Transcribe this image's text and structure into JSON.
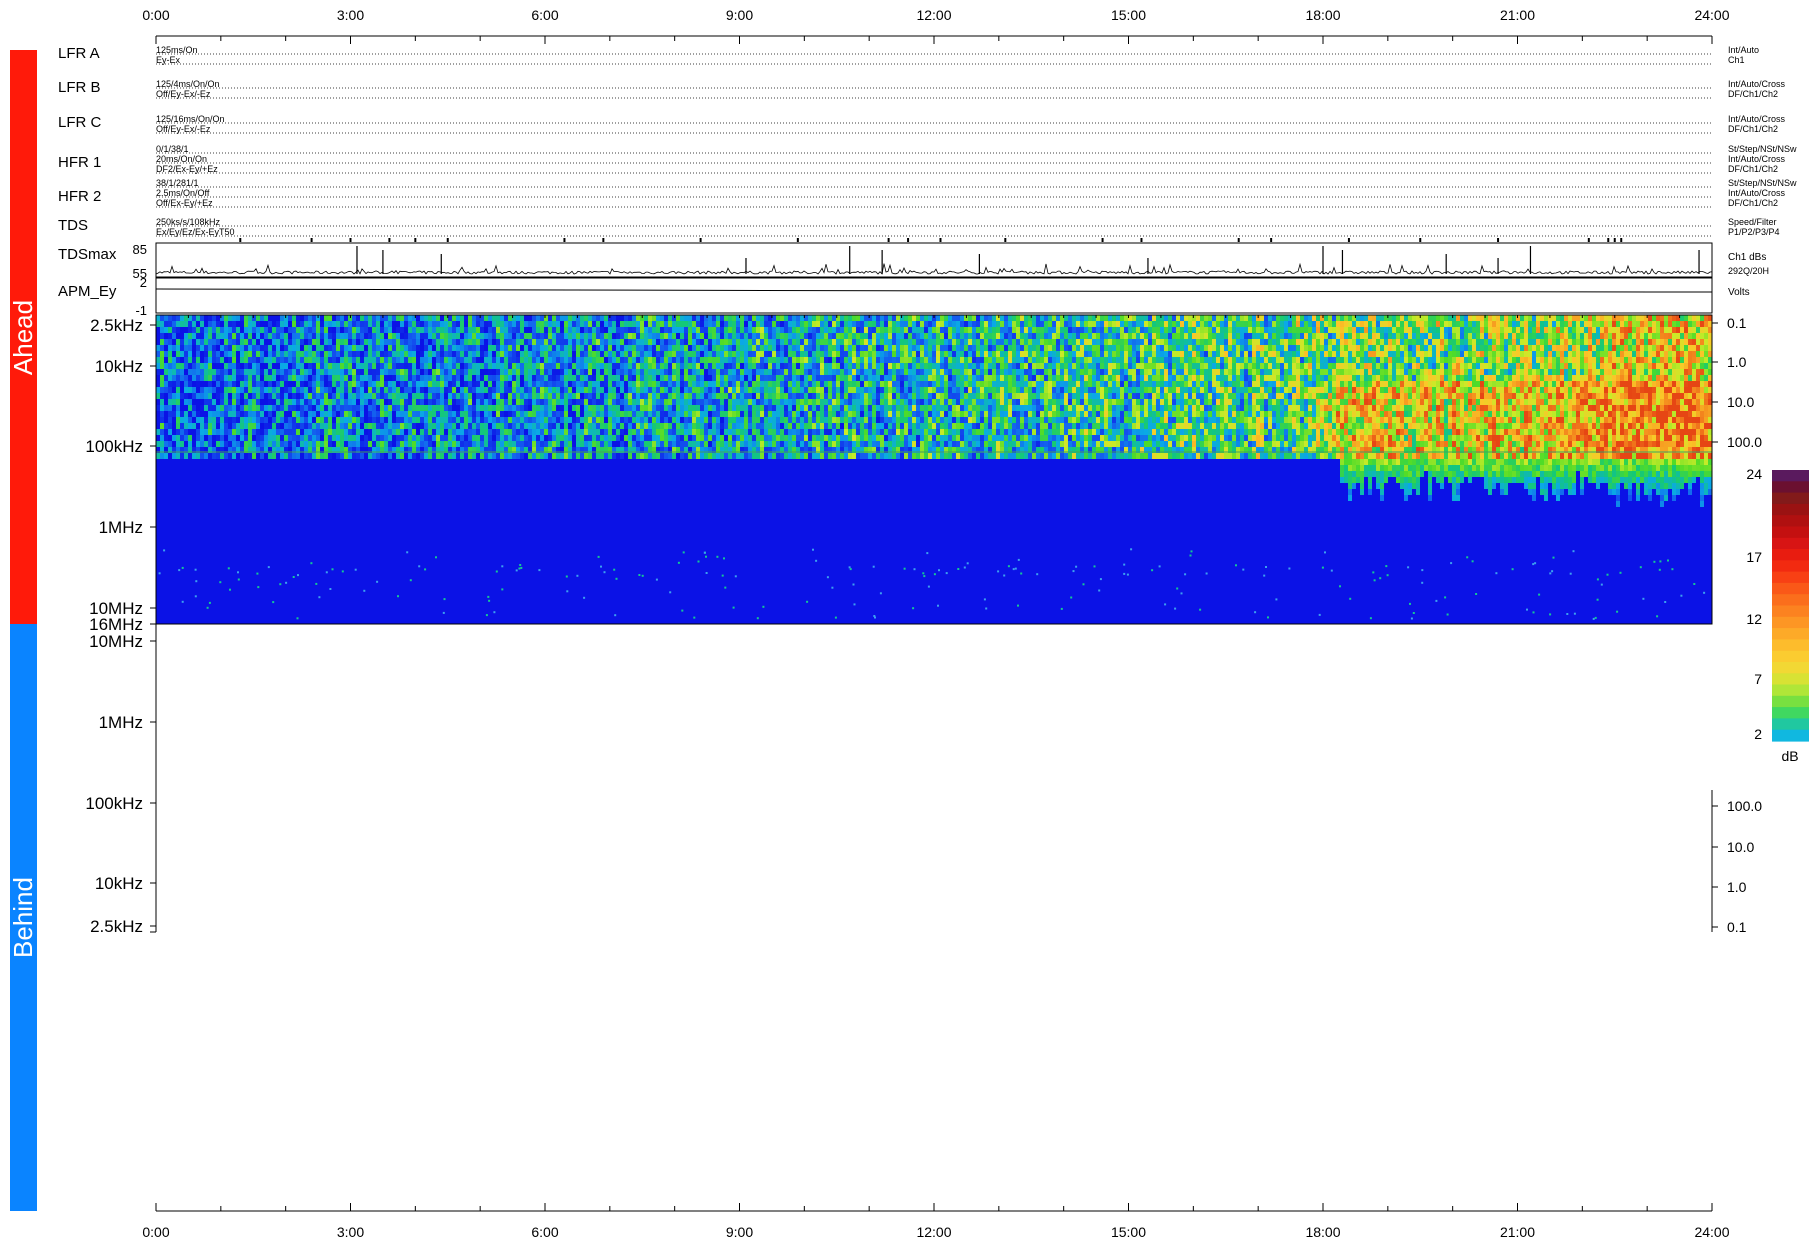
{
  "colors": {
    "ahead": "#ff1a0a",
    "behind": "#0a84ff",
    "spectro_low": "#0b12e6",
    "line": "#000000",
    "axis_text": "#000000"
  },
  "sides": {
    "ahead": "Ahead",
    "behind": "Behind"
  },
  "time_axis": {
    "ticks": [
      "0:00",
      "3:00",
      "6:00",
      "9:00",
      "12:00",
      "15:00",
      "18:00",
      "21:00",
      "24:00"
    ]
  },
  "instrument_rows": [
    {
      "name": "LFR A",
      "left": [
        "125ms/On",
        "Ey-Ex"
      ],
      "right": [
        "Int/Auto",
        "Ch1"
      ]
    },
    {
      "name": "LFR B",
      "left": [
        "125/4ms/On/On",
        "Off/Ey-Ex/-Ez"
      ],
      "right": [
        "Int/Auto/Cross",
        "DF/Ch1/Ch2"
      ]
    },
    {
      "name": "LFR C",
      "left": [
        "125/16ms/On/On",
        "Off/Ey-Ex/-Ez"
      ],
      "right": [
        "Int/Auto/Cross",
        "DF/Ch1/Ch2"
      ]
    },
    {
      "name": "HFR 1",
      "left": [
        "0/1/38/1",
        "20ms/On/On",
        "DF2/Ex-Ey/+Ez"
      ],
      "right": [
        "St/Step/NSt/NSw",
        "Int/Auto/Cross",
        "DF/Ch1/Ch2"
      ]
    },
    {
      "name": "HFR 2",
      "left": [
        "38/1/281/1",
        "2.5ms/On/Off",
        "Off/Ex-Ey/+Ez"
      ],
      "right": [
        "St/Step/NSt/NSw",
        "Int/Auto/Cross",
        "DF/Ch1/Ch2"
      ]
    },
    {
      "name": "TDS",
      "left": [
        "250ks/s/108kHz",
        "Ex/Ey/Ez/Ex-EyT50"
      ],
      "right": [
        "Speed/Filter",
        "P1/P2/P3/P4"
      ]
    }
  ],
  "tdsmax": {
    "name": "TDSmax",
    "yticks": [
      "85",
      "55"
    ],
    "right": [
      "Ch1 dBs",
      "292Q/20H"
    ]
  },
  "apm": {
    "name": "APM_Ey",
    "yticks": [
      "2",
      "-1"
    ],
    "right": [
      "Volts"
    ]
  },
  "freq_axis_ahead": {
    "left": [
      "2.5kHz",
      "10kHz",
      "100kHz",
      "1MHz",
      "10MHz",
      "16MHz"
    ],
    "right": [
      "0.1",
      "1.0",
      "10.0",
      "100.0"
    ]
  },
  "freq_axis_behind": {
    "left": [
      "10MHz",
      "1MHz",
      "100kHz",
      "10kHz",
      "2.5kHz"
    ],
    "right": [
      "100.0",
      "10.0",
      "1.0",
      "0.1"
    ]
  },
  "colorbar": {
    "unit": "dB",
    "ticks": [
      "24",
      "17",
      "12",
      "7",
      "2"
    ]
  },
  "chart_data": {
    "type": "heatmap",
    "x_range_hours": [
      0,
      24
    ],
    "tdsmax_spikes_hours": [
      3.1,
      3.5,
      4.4,
      9.1,
      10.7,
      11.2,
      12.7,
      15.3,
      18.0,
      18.3,
      19.9,
      20.7,
      21.2,
      23.8
    ],
    "colorbar_range_db": [
      2,
      24
    ]
  }
}
